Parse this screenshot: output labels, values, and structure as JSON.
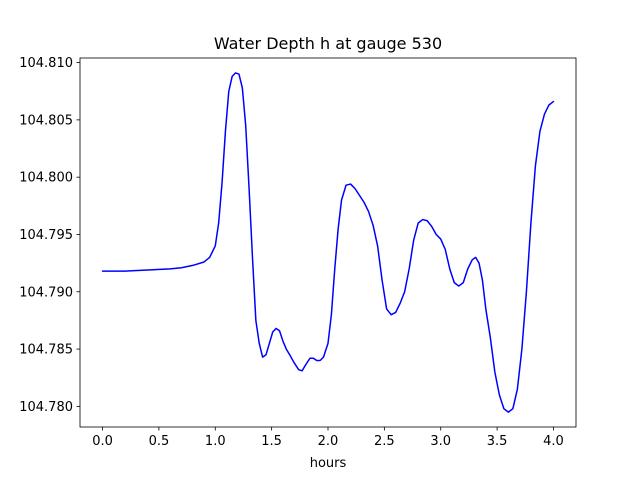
{
  "chart_data": {
    "type": "line",
    "title": "Water Depth h at gauge 530",
    "xlabel": "hours",
    "ylabel": "",
    "xlim": [
      -0.2,
      4.2
    ],
    "ylim": [
      104.7782,
      104.8104
    ],
    "grid": false,
    "x_ticks": [
      0.0,
      0.5,
      1.0,
      1.5,
      2.0,
      2.5,
      3.0,
      3.5,
      4.0
    ],
    "x_tick_labels": [
      "0.0",
      "0.5",
      "1.0",
      "1.5",
      "2.0",
      "2.5",
      "3.0",
      "3.5",
      "4.0"
    ],
    "y_ticks": [
      104.78,
      104.785,
      104.79,
      104.795,
      104.8,
      104.805,
      104.81
    ],
    "y_tick_labels": [
      "104.780",
      "104.785",
      "104.790",
      "104.795",
      "104.800",
      "104.805",
      "104.810"
    ],
    "series": [
      {
        "color": "#0000ff",
        "x": [
          0.0,
          0.2,
          0.4,
          0.6,
          0.7,
          0.8,
          0.9,
          0.95,
          1.0,
          1.03,
          1.06,
          1.09,
          1.12,
          1.15,
          1.18,
          1.21,
          1.24,
          1.27,
          1.3,
          1.33,
          1.36,
          1.39,
          1.42,
          1.45,
          1.48,
          1.51,
          1.54,
          1.57,
          1.6,
          1.63,
          1.66,
          1.7,
          1.74,
          1.77,
          1.8,
          1.84,
          1.87,
          1.9,
          1.93,
          1.96,
          2.0,
          2.03,
          2.06,
          2.09,
          2.12,
          2.16,
          2.2,
          2.24,
          2.28,
          2.32,
          2.36,
          2.4,
          2.44,
          2.48,
          2.52,
          2.56,
          2.6,
          2.64,
          2.68,
          2.72,
          2.76,
          2.8,
          2.84,
          2.88,
          2.92,
          2.96,
          3.0,
          3.04,
          3.08,
          3.12,
          3.16,
          3.2,
          3.24,
          3.28,
          3.31,
          3.34,
          3.37,
          3.4,
          3.44,
          3.48,
          3.52,
          3.56,
          3.6,
          3.64,
          3.68,
          3.72,
          3.76,
          3.8,
          3.84,
          3.88,
          3.92,
          3.96,
          4.0
        ],
        "y": [
          104.7918,
          104.7918,
          104.7919,
          104.792,
          104.7921,
          104.7923,
          104.7926,
          104.793,
          104.794,
          104.796,
          104.7995,
          104.804,
          104.8075,
          104.8088,
          104.8091,
          104.809,
          104.8078,
          104.8045,
          104.799,
          104.793,
          104.7875,
          104.7855,
          104.7843,
          104.7845,
          104.7855,
          104.7865,
          104.7868,
          104.7866,
          104.7857,
          104.785,
          104.7845,
          104.7838,
          104.7832,
          104.7831,
          104.7836,
          104.7842,
          104.7842,
          104.784,
          104.784,
          104.7843,
          104.7855,
          104.788,
          104.792,
          104.7955,
          104.798,
          104.7993,
          104.7994,
          104.799,
          104.7984,
          104.7978,
          104.797,
          104.7958,
          104.794,
          104.791,
          104.7885,
          104.788,
          104.7882,
          104.789,
          104.79,
          104.792,
          104.7945,
          104.796,
          104.7963,
          104.7962,
          104.7957,
          104.795,
          104.7946,
          104.7937,
          104.792,
          104.7908,
          104.7905,
          104.7908,
          104.792,
          104.7928,
          104.793,
          104.7925,
          104.791,
          104.7885,
          104.786,
          104.783,
          104.781,
          104.7798,
          104.7795,
          104.7798,
          104.7815,
          104.785,
          104.79,
          104.796,
          104.801,
          104.804,
          104.8055,
          104.8063,
          104.8066
        ]
      }
    ]
  }
}
